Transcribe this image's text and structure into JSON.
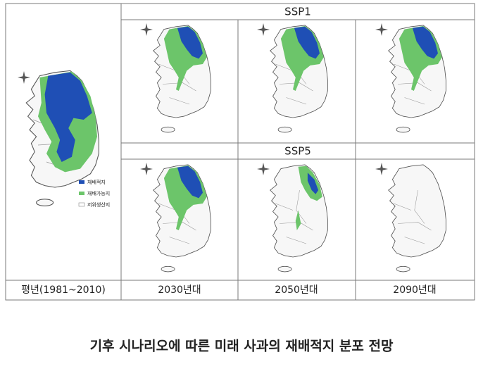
{
  "table": {
    "header": {
      "ssp1": "SSP1",
      "ssp5": "SSP5"
    },
    "columns": [
      "평년(1981~2010)",
      "2030년대",
      "2050년대",
      "2090년대"
    ]
  },
  "legend": [
    "재배적지",
    "재배가능지",
    "저위생산지"
  ],
  "caption": "기후 시나리오에 따른 미래 사과의 재배적지 분포 전망"
}
